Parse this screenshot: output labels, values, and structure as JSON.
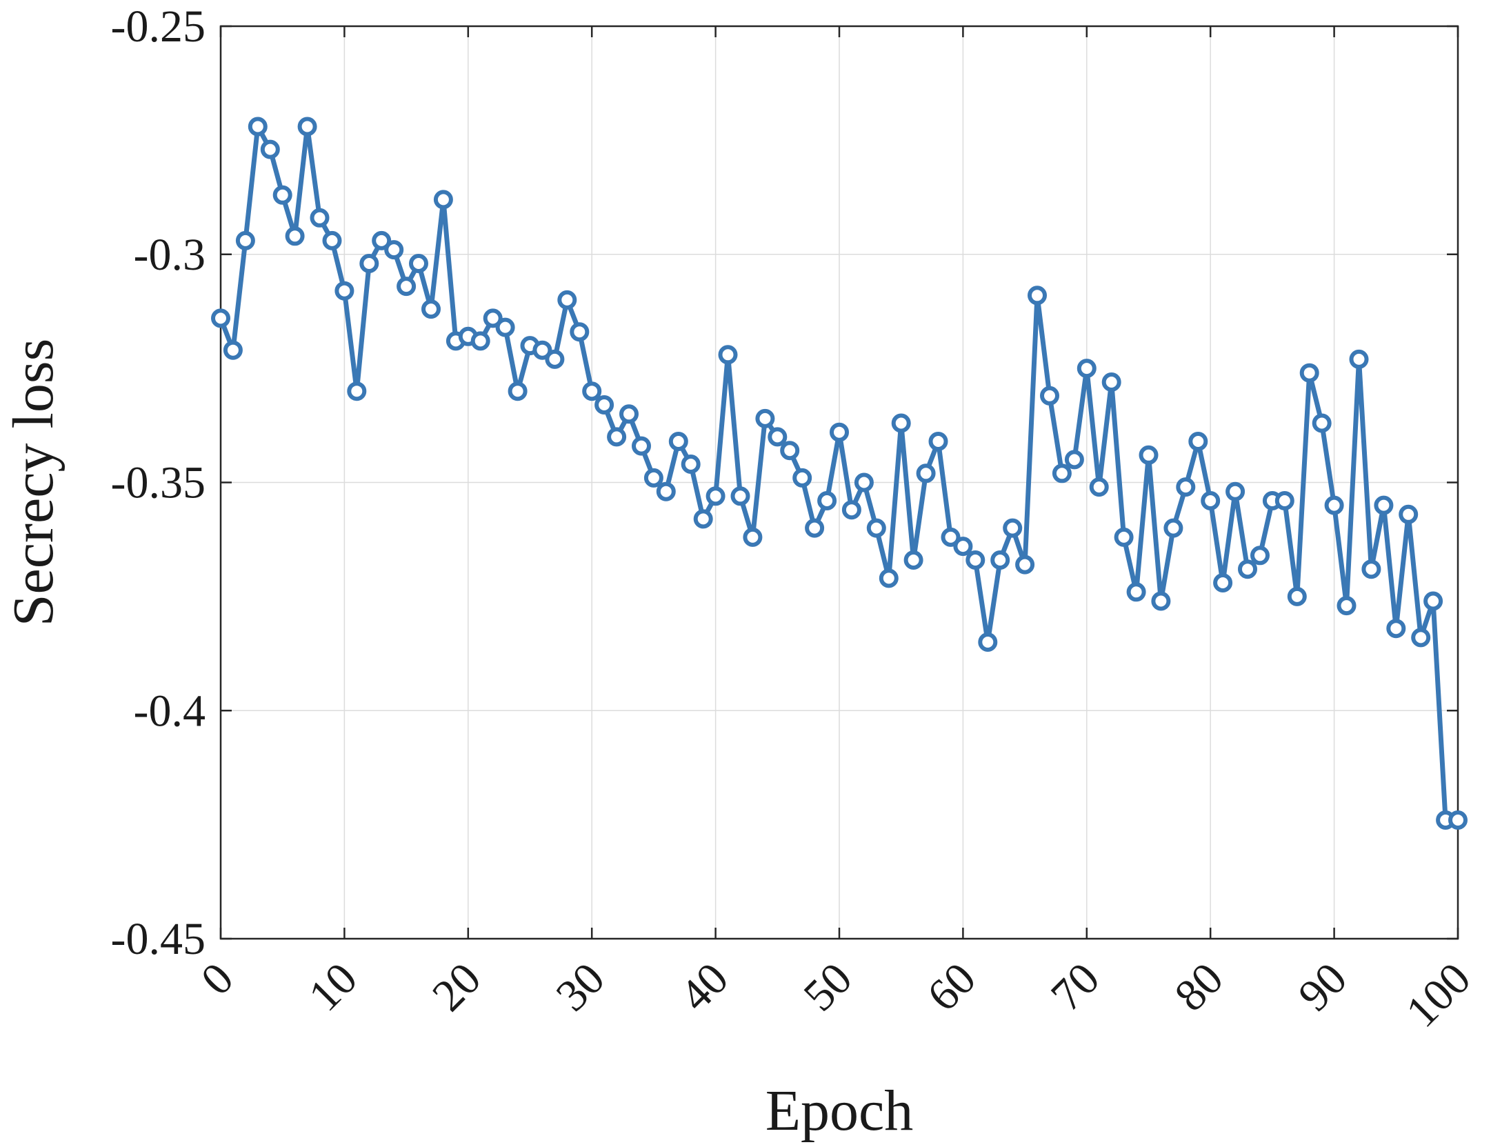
{
  "chart_data": {
    "type": "line",
    "xlabel": "Epoch",
    "ylabel": "Secrecy loss",
    "xlim": [
      0,
      100
    ],
    "ylim": [
      -0.45,
      -0.25
    ],
    "grid": true,
    "marker": "circle",
    "line_color": "#3a78b5",
    "x_ticks": [
      0,
      10,
      20,
      30,
      40,
      50,
      60,
      70,
      80,
      90,
      100
    ],
    "x_tick_labels": [
      "0",
      "10",
      "20",
      "30",
      "40",
      "50",
      "60",
      "70",
      "80",
      "90",
      "100"
    ],
    "y_ticks": [
      -0.25,
      -0.3,
      -0.35,
      -0.4,
      -0.45
    ],
    "y_tick_labels": [
      "-0.25",
      "-0.3",
      "-0.35",
      "-0.4",
      "-0.45"
    ],
    "series": [
      {
        "x": [
          0,
          1,
          2,
          3,
          4,
          5,
          6,
          7,
          8,
          9,
          10,
          11,
          12,
          13,
          14,
          15,
          16,
          17,
          18,
          19,
          20,
          21,
          22,
          23,
          24,
          25,
          26,
          27,
          28,
          29,
          30,
          31,
          32,
          33,
          34,
          35,
          36,
          37,
          38,
          39,
          40,
          41,
          42,
          43,
          44,
          45,
          46,
          47,
          48,
          49,
          50,
          51,
          52,
          53,
          54,
          55,
          56,
          57,
          58,
          59,
          60,
          61,
          62,
          63,
          64,
          65,
          66,
          67,
          68,
          69,
          70,
          71,
          72,
          73,
          74,
          75,
          76,
          77,
          78,
          79,
          80,
          81,
          82,
          83,
          84,
          85,
          86,
          87,
          88,
          89,
          90,
          91,
          92,
          93,
          94,
          95,
          96,
          97,
          98,
          99,
          100
        ],
        "y": [
          -0.314,
          -0.321,
          -0.297,
          -0.272,
          -0.277,
          -0.287,
          -0.296,
          -0.272,
          -0.292,
          -0.297,
          -0.308,
          -0.33,
          -0.302,
          -0.297,
          -0.299,
          -0.307,
          -0.302,
          -0.312,
          -0.288,
          -0.319,
          -0.318,
          -0.319,
          -0.314,
          -0.316,
          -0.33,
          -0.32,
          -0.321,
          -0.323,
          -0.31,
          -0.317,
          -0.33,
          -0.333,
          -0.34,
          -0.335,
          -0.342,
          -0.349,
          -0.352,
          -0.341,
          -0.346,
          -0.358,
          -0.353,
          -0.322,
          -0.353,
          -0.362,
          -0.336,
          -0.34,
          -0.343,
          -0.349,
          -0.36,
          -0.354,
          -0.339,
          -0.356,
          -0.35,
          -0.36,
          -0.371,
          -0.337,
          -0.367,
          -0.348,
          -0.341,
          -0.362,
          -0.364,
          -0.367,
          -0.385,
          -0.367,
          -0.36,
          -0.368,
          -0.309,
          -0.331,
          -0.348,
          -0.345,
          -0.325,
          -0.351,
          -0.328,
          -0.362,
          -0.374,
          -0.344,
          -0.376,
          -0.36,
          -0.351,
          -0.341,
          -0.354,
          -0.372,
          -0.352,
          -0.369,
          -0.366,
          -0.354,
          -0.354,
          -0.375,
          -0.326,
          -0.337,
          -0.355,
          -0.377,
          -0.323,
          -0.369,
          -0.355,
          -0.382,
          -0.357,
          -0.384,
          -0.376,
          -0.424,
          -0.424
        ]
      }
    ]
  }
}
